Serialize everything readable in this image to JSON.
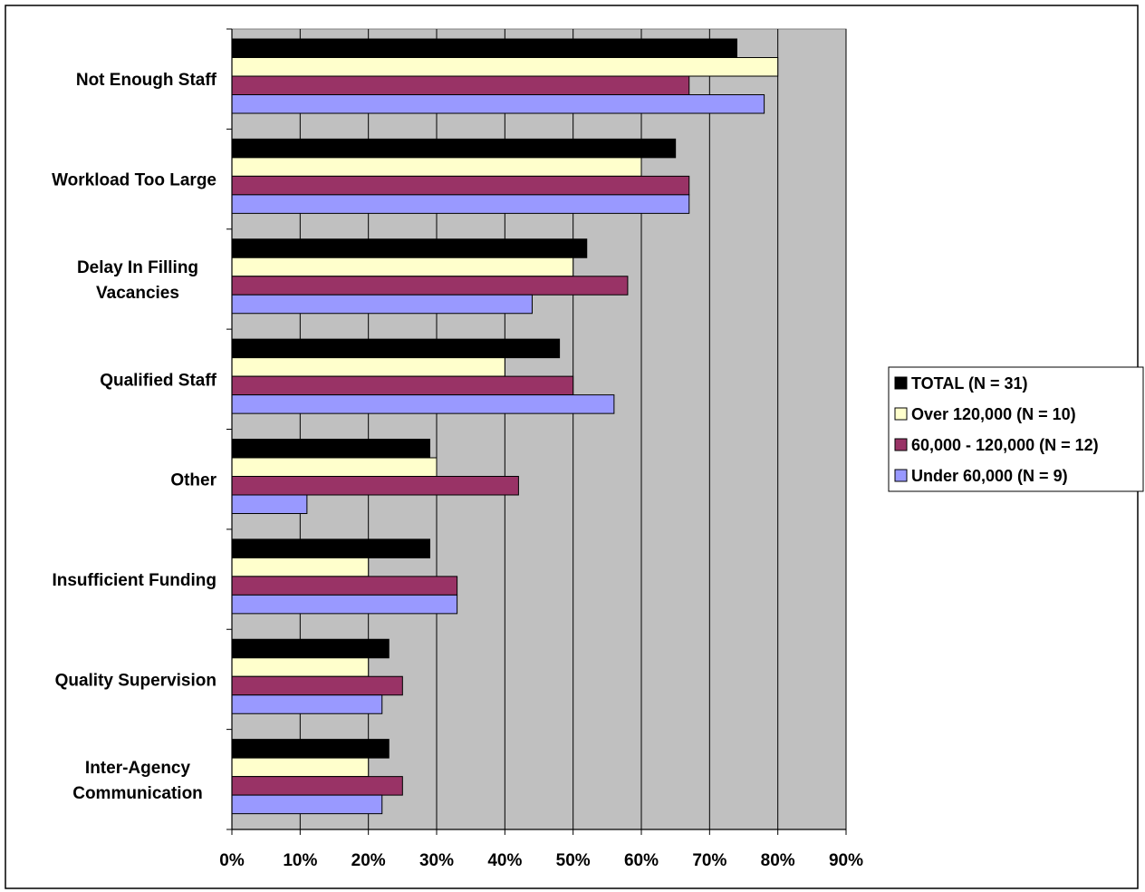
{
  "chart_data": {
    "type": "bar",
    "orientation": "horizontal",
    "title": "",
    "xlabel": "",
    "ylabel": "",
    "xlim": [
      0,
      90
    ],
    "x_tick_step": 10,
    "tick_suffix": "%",
    "grid": true,
    "legend_position": "right",
    "categories": [
      [
        "Not Enough Staff"
      ],
      [
        "Workload Too Large"
      ],
      [
        "Delay In Filling",
        "Vacancies"
      ],
      [
        "Qualified Staff"
      ],
      [
        "Other"
      ],
      [
        "Insufficient Funding"
      ],
      [
        "Quality Supervision"
      ],
      [
        "Inter-Agency",
        "Communication"
      ]
    ],
    "series": [
      {
        "name": "TOTAL (N = 31)",
        "color": "#000000",
        "values": [
          74,
          65,
          52,
          48,
          29,
          29,
          23,
          23
        ]
      },
      {
        "name": "Over 120,000 (N = 10)",
        "color": "#FFFFCC",
        "values": [
          80,
          60,
          50,
          40,
          30,
          20,
          20,
          20
        ]
      },
      {
        "name": "60,000 - 120,000 (N = 12)",
        "color": "#993366",
        "values": [
          67,
          67,
          58,
          50,
          42,
          33,
          25,
          25
        ]
      },
      {
        "name": "Under 60,000 (N = 9)",
        "color": "#9999FF",
        "values": [
          78,
          67,
          44,
          56,
          11,
          33,
          22,
          22
        ]
      }
    ],
    "plot_background": "#C0C0C0"
  }
}
